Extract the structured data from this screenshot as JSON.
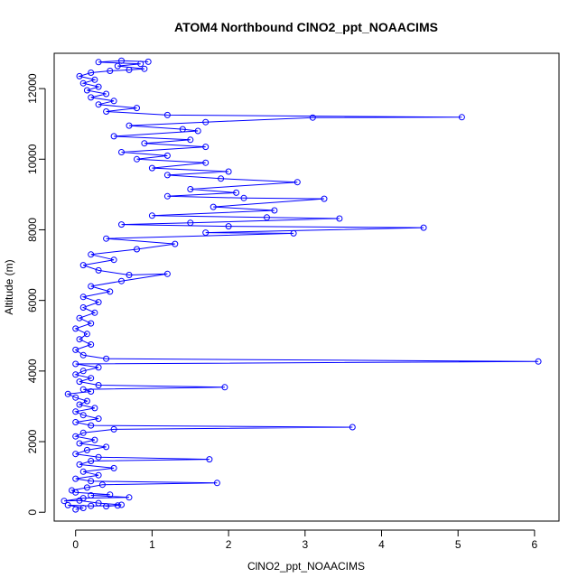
{
  "chart_data": {
    "type": "line",
    "title": "ATOM4 Northbound ClNO2_ppt_NOAACIMS",
    "xlabel": "ClNO2_ppt_NOAACIMS",
    "ylabel": "Altitude (m)",
    "xlim": [
      -0.28,
      6.32
    ],
    "ylim": [
      -250,
      13000
    ],
    "xticks": [
      0,
      1,
      2,
      3,
      4,
      5,
      6
    ],
    "yticks": [
      0,
      2000,
      4000,
      6000,
      8000,
      10000,
      12000
    ],
    "grid": false,
    "marker": "open-circle",
    "color": "#0000ff",
    "series": [
      {
        "points": [
          [
            0.0,
            80
          ],
          [
            0.1,
            120
          ],
          [
            -0.1,
            200
          ],
          [
            0.2,
            180
          ],
          [
            0.55,
            190
          ],
          [
            0.4,
            170
          ],
          [
            0.6,
            210
          ],
          [
            0.3,
            260
          ],
          [
            0.05,
            330
          ],
          [
            -0.15,
            320
          ],
          [
            0.1,
            400
          ],
          [
            0.7,
            420
          ],
          [
            0.2,
            480
          ],
          [
            0.45,
            500
          ],
          [
            0.0,
            560
          ],
          [
            -0.05,
            620
          ],
          [
            0.15,
            700
          ],
          [
            0.35,
            780
          ],
          [
            1.85,
            830
          ],
          [
            0.2,
            880
          ],
          [
            0.0,
            950
          ],
          [
            0.3,
            1050
          ],
          [
            0.1,
            1150
          ],
          [
            0.5,
            1250
          ],
          [
            0.05,
            1350
          ],
          [
            0.2,
            1450
          ],
          [
            1.75,
            1500
          ],
          [
            0.3,
            1560
          ],
          [
            0.0,
            1650
          ],
          [
            0.15,
            1760
          ],
          [
            0.4,
            1850
          ],
          [
            0.05,
            1950
          ],
          [
            0.25,
            2050
          ],
          [
            0.0,
            2150
          ],
          [
            0.1,
            2250
          ],
          [
            0.5,
            2350
          ],
          [
            3.62,
            2410
          ],
          [
            0.2,
            2460
          ],
          [
            0.0,
            2550
          ],
          [
            0.3,
            2650
          ],
          [
            0.1,
            2750
          ],
          [
            0.0,
            2850
          ],
          [
            0.25,
            2950
          ],
          [
            0.05,
            3050
          ],
          [
            0.15,
            3150
          ],
          [
            0.0,
            3250
          ],
          [
            -0.1,
            3350
          ],
          [
            0.2,
            3420
          ],
          [
            0.1,
            3480
          ],
          [
            1.95,
            3540
          ],
          [
            0.3,
            3600
          ],
          [
            0.05,
            3700
          ],
          [
            0.2,
            3800
          ],
          [
            0.0,
            3900
          ],
          [
            0.1,
            4000
          ],
          [
            0.3,
            4100
          ],
          [
            0.0,
            4200
          ],
          [
            6.05,
            4270
          ],
          [
            0.4,
            4350
          ],
          [
            0.1,
            4450
          ],
          [
            0.0,
            4600
          ],
          [
            0.2,
            4750
          ],
          [
            0.05,
            4900
          ],
          [
            0.15,
            5050
          ],
          [
            0.0,
            5200
          ],
          [
            0.2,
            5350
          ],
          [
            0.05,
            5500
          ],
          [
            0.25,
            5650
          ],
          [
            0.1,
            5800
          ],
          [
            0.3,
            5950
          ],
          [
            0.1,
            6100
          ],
          [
            0.45,
            6250
          ],
          [
            0.2,
            6400
          ],
          [
            0.6,
            6550
          ],
          [
            1.2,
            6750
          ],
          [
            0.7,
            6720
          ],
          [
            0.3,
            6850
          ],
          [
            0.1,
            7000
          ],
          [
            0.5,
            7150
          ],
          [
            0.2,
            7300
          ],
          [
            0.8,
            7450
          ],
          [
            1.3,
            7600
          ],
          [
            0.4,
            7750
          ],
          [
            2.85,
            7900
          ],
          [
            1.7,
            7920
          ],
          [
            4.55,
            8060
          ],
          [
            2.0,
            8100
          ],
          [
            0.6,
            8150
          ],
          [
            1.5,
            8200
          ],
          [
            3.45,
            8320
          ],
          [
            2.5,
            8350
          ],
          [
            1.0,
            8400
          ],
          [
            2.6,
            8550
          ],
          [
            1.8,
            8650
          ],
          [
            3.25,
            8880
          ],
          [
            2.2,
            8900
          ],
          [
            1.2,
            8950
          ],
          [
            2.1,
            9050
          ],
          [
            1.5,
            9150
          ],
          [
            2.9,
            9350
          ],
          [
            1.9,
            9450
          ],
          [
            1.2,
            9550
          ],
          [
            2.0,
            9650
          ],
          [
            1.0,
            9750
          ],
          [
            1.7,
            9900
          ],
          [
            0.8,
            10000
          ],
          [
            1.2,
            10100
          ],
          [
            0.6,
            10200
          ],
          [
            1.7,
            10350
          ],
          [
            0.9,
            10450
          ],
          [
            1.5,
            10550
          ],
          [
            0.5,
            10650
          ],
          [
            1.6,
            10800
          ],
          [
            1.4,
            10850
          ],
          [
            0.7,
            10950
          ],
          [
            1.7,
            11050
          ],
          [
            3.1,
            11180
          ],
          [
            5.05,
            11190
          ],
          [
            1.2,
            11250
          ],
          [
            0.4,
            11350
          ],
          [
            0.8,
            11450
          ],
          [
            0.3,
            11550
          ],
          [
            0.5,
            11650
          ],
          [
            0.2,
            11750
          ],
          [
            0.4,
            11850
          ],
          [
            0.15,
            11950
          ],
          [
            0.3,
            12050
          ],
          [
            0.1,
            12150
          ],
          [
            0.25,
            12250
          ],
          [
            0.05,
            12350
          ],
          [
            0.2,
            12450
          ],
          [
            0.45,
            12500
          ],
          [
            0.7,
            12530
          ],
          [
            0.9,
            12560
          ],
          [
            0.55,
            12640
          ],
          [
            0.85,
            12700
          ],
          [
            0.3,
            12750
          ],
          [
            0.6,
            12790
          ],
          [
            0.95,
            12760
          ]
        ]
      }
    ]
  }
}
